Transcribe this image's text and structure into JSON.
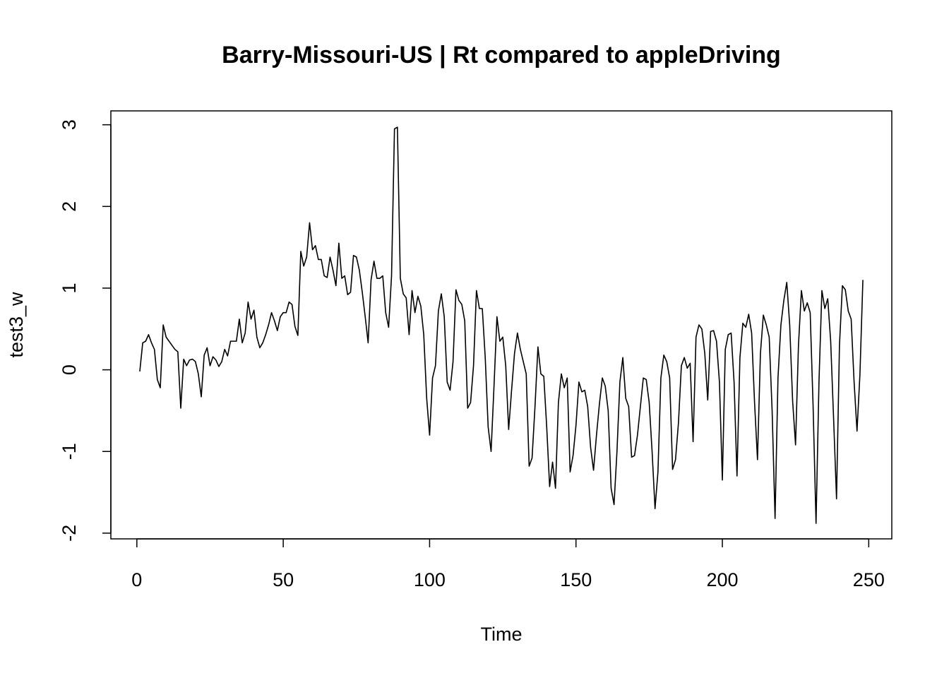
{
  "chart_data": {
    "type": "line",
    "title": "Barry-Missouri-US | Rt compared to appleDriving",
    "x_label": "Time",
    "y_label": "test3_w",
    "color": "#000000",
    "x": [
      1,
      2,
      3,
      4,
      5,
      6,
      7,
      8,
      9,
      10,
      11,
      12,
      13,
      14,
      15,
      16,
      17,
      18,
      19,
      20,
      21,
      22,
      23,
      24,
      25,
      26,
      27,
      28,
      29,
      30,
      31,
      32,
      33,
      34,
      35,
      36,
      37,
      38,
      39,
      40,
      41,
      42,
      43,
      44,
      45,
      46,
      47,
      48,
      49,
      50,
      51,
      52,
      53,
      54,
      55,
      56,
      57,
      58,
      59,
      60,
      61,
      62,
      63,
      64,
      65,
      66,
      67,
      68,
      69,
      70,
      71,
      72,
      73,
      74,
      75,
      76,
      77,
      78,
      79,
      80,
      81,
      82,
      83,
      84,
      85,
      86,
      87,
      88,
      89,
      90,
      91,
      92,
      93,
      94,
      95,
      96,
      97,
      98,
      99,
      100,
      101,
      102,
      103,
      104,
      105,
      106,
      107,
      108,
      109,
      110,
      111,
      112,
      113,
      114,
      115,
      116,
      117,
      118,
      119,
      120,
      121,
      122,
      123,
      124,
      125,
      126,
      127,
      128,
      129,
      130,
      131,
      132,
      133,
      134,
      135,
      136,
      137,
      138,
      139,
      140,
      141,
      142,
      143,
      144,
      145,
      146,
      147,
      148,
      149,
      150,
      151,
      152,
      153,
      154,
      155,
      156,
      157,
      158,
      159,
      160,
      161,
      162,
      163,
      164,
      165,
      166,
      167,
      168,
      169,
      170,
      171,
      172,
      173,
      174,
      175,
      176,
      177,
      178,
      179,
      180,
      181,
      182,
      183,
      184,
      185,
      186,
      187,
      188,
      189,
      190,
      191,
      192,
      193,
      194,
      195,
      196,
      197,
      198,
      199,
      200,
      201,
      202,
      203,
      204,
      205,
      206,
      207,
      208,
      209,
      210,
      211,
      212,
      213,
      214,
      215,
      216,
      217,
      218,
      219,
      220,
      221,
      222,
      223,
      224,
      225,
      226,
      227,
      228,
      229,
      230,
      231,
      232,
      233,
      234,
      235,
      236,
      237,
      238,
      239,
      240,
      241,
      242,
      243,
      244,
      245,
      246,
      247,
      248
    ],
    "values": [
      -0.02,
      0.33,
      0.35,
      0.43,
      0.33,
      0.25,
      -0.12,
      -0.22,
      0.55,
      0.4,
      0.35,
      0.3,
      0.25,
      0.22,
      -0.47,
      0.13,
      0.05,
      0.12,
      0.13,
      0.1,
      -0.05,
      -0.33,
      0.18,
      0.27,
      0.05,
      0.16,
      0.12,
      0.04,
      0.1,
      0.25,
      0.17,
      0.35,
      0.35,
      0.35,
      0.62,
      0.33,
      0.45,
      0.83,
      0.62,
      0.73,
      0.4,
      0.27,
      0.33,
      0.43,
      0.55,
      0.7,
      0.6,
      0.48,
      0.65,
      0.7,
      0.7,
      0.83,
      0.8,
      0.53,
      0.42,
      1.45,
      1.27,
      1.38,
      1.8,
      1.47,
      1.52,
      1.35,
      1.35,
      1.15,
      1.13,
      1.38,
      1.22,
      1.03,
      1.55,
      1.12,
      1.15,
      0.92,
      0.95,
      1.4,
      1.38,
      1.22,
      0.95,
      0.65,
      0.33,
      1.1,
      1.33,
      1.12,
      1.12,
      1.15,
      0.7,
      0.52,
      1.15,
      2.95,
      2.97,
      1.12,
      0.93,
      0.88,
      0.43,
      0.97,
      0.7,
      0.9,
      0.78,
      0.43,
      -0.35,
      -0.8,
      -0.1,
      0.05,
      0.72,
      0.93,
      0.65,
      -0.15,
      -0.25,
      0.1,
      0.98,
      0.85,
      0.8,
      0.6,
      -0.47,
      -0.4,
      0.05,
      0.97,
      0.75,
      0.75,
      0.15,
      -0.7,
      -1.0,
      -0.2,
      0.65,
      0.35,
      0.4,
      0.05,
      -0.73,
      -0.25,
      0.2,
      0.45,
      0.25,
      0.1,
      -0.05,
      -1.18,
      -1.08,
      -0.45,
      0.28,
      -0.05,
      -0.08,
      -0.7,
      -1.43,
      -1.13,
      -1.45,
      -0.4,
      -0.05,
      -0.22,
      -0.1,
      -1.25,
      -1.05,
      -0.68,
      -0.15,
      -0.27,
      -0.25,
      -0.45,
      -0.95,
      -1.23,
      -0.8,
      -0.42,
      -0.1,
      -0.2,
      -0.5,
      -1.45,
      -1.65,
      -1.0,
      -0.15,
      0.15,
      -0.35,
      -0.45,
      -1.07,
      -1.05,
      -0.8,
      -0.45,
      -0.1,
      -0.12,
      -0.4,
      -1.0,
      -1.7,
      -1.25,
      -0.1,
      0.18,
      0.1,
      -0.1,
      -1.22,
      -1.1,
      -0.65,
      0.05,
      0.15,
      0.02,
      0.08,
      -0.88,
      0.4,
      0.55,
      0.5,
      0.2,
      -0.37,
      0.47,
      0.48,
      0.35,
      -0.15,
      -1.35,
      0.25,
      0.43,
      0.45,
      -0.15,
      -1.3,
      0.15,
      0.57,
      0.52,
      0.68,
      0.45,
      -0.4,
      -1.1,
      0.2,
      0.67,
      0.55,
      0.4,
      -0.5,
      -1.82,
      -0.1,
      0.55,
      0.85,
      1.07,
      0.55,
      -0.38,
      -0.92,
      0.3,
      0.97,
      0.72,
      0.82,
      0.7,
      -0.45,
      -1.88,
      -0.15,
      0.97,
      0.75,
      0.87,
      0.35,
      -0.6,
      -1.58,
      0.3,
      1.03,
      0.98,
      0.72,
      0.62,
      -0.15,
      -0.75,
      -0.05,
      1.1
    ],
    "xlim": [
      -8.88,
      257.88
    ],
    "ylim": [
      -2.07,
      3.17
    ],
    "xticks": [
      0,
      50,
      100,
      150,
      200,
      250
    ],
    "yticks": [
      -2,
      -1,
      0,
      1,
      2,
      3
    ]
  }
}
